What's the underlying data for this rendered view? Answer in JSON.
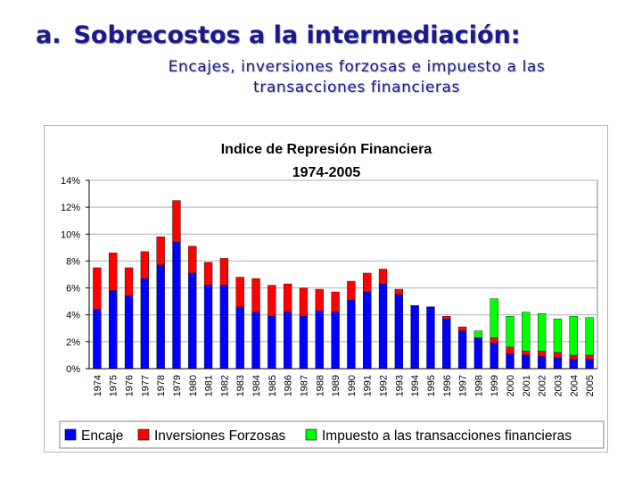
{
  "slide": {
    "number": "a.",
    "title": "Sobrecostos a la intermediación:",
    "subtitle_line1": "Encajes, inversiones forzosas e impuesto a las",
    "subtitle_line2": "transacciones financieras"
  },
  "colors": {
    "encaje": "#0000ff",
    "inversiones": "#ff0000",
    "impuesto": "#00ff00",
    "title": "#1a1a8c"
  },
  "chart_data": {
    "type": "bar",
    "stacked": true,
    "title": "Indice de Represión Financiera",
    "subtitle": "1974-2005",
    "ylim": [
      0,
      14
    ],
    "yticks": [
      "0%",
      "2%",
      "4%",
      "6%",
      "8%",
      "10%",
      "12%",
      "14%"
    ],
    "grid": true,
    "legend_position": "bottom",
    "categories": [
      "1974",
      "1975",
      "1976",
      "1977",
      "1978",
      "1979",
      "1980",
      "1981",
      "1982",
      "1983",
      "1984",
      "1985",
      "1986",
      "1987",
      "1988",
      "1989",
      "1990",
      "1991",
      "1992",
      "1993",
      "1994",
      "1995",
      "1996",
      "1997",
      "1998",
      "1999",
      "2000",
      "2001",
      "2002",
      "2003",
      "2004",
      "2005"
    ],
    "series": [
      {
        "name": "Encaje",
        "values": [
          4.4,
          5.8,
          5.4,
          6.7,
          7.7,
          9.4,
          7.1,
          6.2,
          6.2,
          4.6,
          4.2,
          3.9,
          4.2,
          3.9,
          4.3,
          4.2,
          5.1,
          5.7,
          6.3,
          5.5,
          4.7,
          4.6,
          3.7,
          2.8,
          2.3,
          1.9,
          1.1,
          1.0,
          0.9,
          0.8,
          0.7,
          0.7
        ]
      },
      {
        "name": "Inversiones Forzosas",
        "values": [
          3.1,
          2.8,
          2.1,
          2.0,
          2.1,
          3.1,
          2.0,
          1.7,
          2.0,
          2.2,
          2.5,
          2.3,
          2.1,
          2.1,
          1.6,
          1.5,
          1.4,
          1.4,
          1.1,
          0.4,
          0.0,
          0.0,
          0.2,
          0.3,
          0.0,
          0.4,
          0.5,
          0.3,
          0.4,
          0.4,
          0.3,
          0.3
        ]
      },
      {
        "name": "Impuesto a las transacciones financieras",
        "values": [
          0,
          0,
          0,
          0,
          0,
          0,
          0,
          0,
          0,
          0,
          0,
          0,
          0,
          0,
          0,
          0,
          0,
          0,
          0,
          0,
          0,
          0,
          0,
          0,
          0.5,
          2.9,
          2.3,
          2.9,
          2.8,
          2.5,
          2.9,
          2.8
        ]
      }
    ]
  }
}
